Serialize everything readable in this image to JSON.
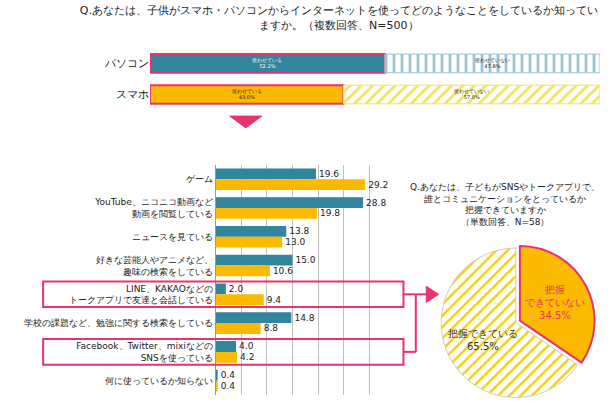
{
  "chart_data": [
    {
      "type": "bar",
      "title": "Q.あなたは、子供がスマホ・パソコンからインターネットを使ってどのようなことをしているか知ってい\nますか。（複数回答、N=500）",
      "orientation": "horizontal",
      "stacked": true,
      "categories": [
        "パソコン",
        "スマホ"
      ],
      "series": [
        {
          "name": "使わせている",
          "colors": [
            "#31859c",
            "#fbb900"
          ],
          "values": [
            52.2,
            43.0
          ],
          "value_labels": [
            "使わせている\n52.2%",
            "使わせている\n43.0%"
          ]
        },
        {
          "name": "使わせていない",
          "colors": [
            "#9cc3d5",
            "#f3e35a"
          ],
          "values": [
            47.8,
            57.0
          ],
          "value_labels": [
            "使わせていない\n47.8%",
            "使わせていない\n57.0%"
          ]
        }
      ],
      "xlim": [
        0,
        100
      ],
      "data_labels": true,
      "tick_labels": "y"
    },
    {
      "type": "bar",
      "orientation": "horizontal",
      "categories": [
        "ゲーム",
        "YouTube、ニコニコ動画など\n動画を閲覧している",
        "ニュースを見ている",
        "好きな芸能人やアニメなど、\n趣味の検索をしている",
        "LINE、KAKAOなどの\nトークアプリで友達と会話している",
        "学校の課題など、勉強に関する検索をしている",
        "Facebook、Twitter、mixiなどの\nSNSを使っている",
        "何に使っているか知らない"
      ],
      "series": [
        {
          "name": "パソコン",
          "color": "#31859c",
          "values": [
            19.6,
            28.8,
            13.8,
            15.0,
            2.0,
            14.8,
            4.0,
            0.4
          ],
          "value_labels": [
            "19.6",
            "28.8",
            "13.8",
            "15.0",
            "2.0",
            "14.8",
            "4.0",
            "0.4"
          ]
        },
        {
          "name": "スマホ",
          "color": "#fbb900",
          "values": [
            29.2,
            19.8,
            13.0,
            10.6,
            9.4,
            8.8,
            4.2,
            0.4
          ],
          "value_labels": [
            "29.2",
            "19.8",
            "13.0",
            "10.6",
            "9.4",
            "8.8",
            "4.2",
            "0.4"
          ]
        }
      ],
      "xlim": [
        0,
        35
      ],
      "xticks": [
        0,
        5,
        10,
        15,
        20,
        25,
        30,
        35
      ],
      "grid": true,
      "data_labels": true,
      "tick_labels": "y"
    },
    {
      "type": "pie",
      "title": "Q.あなたは、子どもがSNSやトークアプリで、\n誰とコミュニケーションをとっているか\n把握できていますか\n（単数回答、N=58）",
      "categories": [
        "把握できていない",
        "把握できている"
      ],
      "values": [
        34.5,
        65.5
      ],
      "value_labels": [
        "把握\nできていない\n34.5%",
        "把握できている\n65.5%"
      ],
      "colors": [
        "#fbb900",
        "#f5d000"
      ],
      "data_labels": true
    }
  ]
}
